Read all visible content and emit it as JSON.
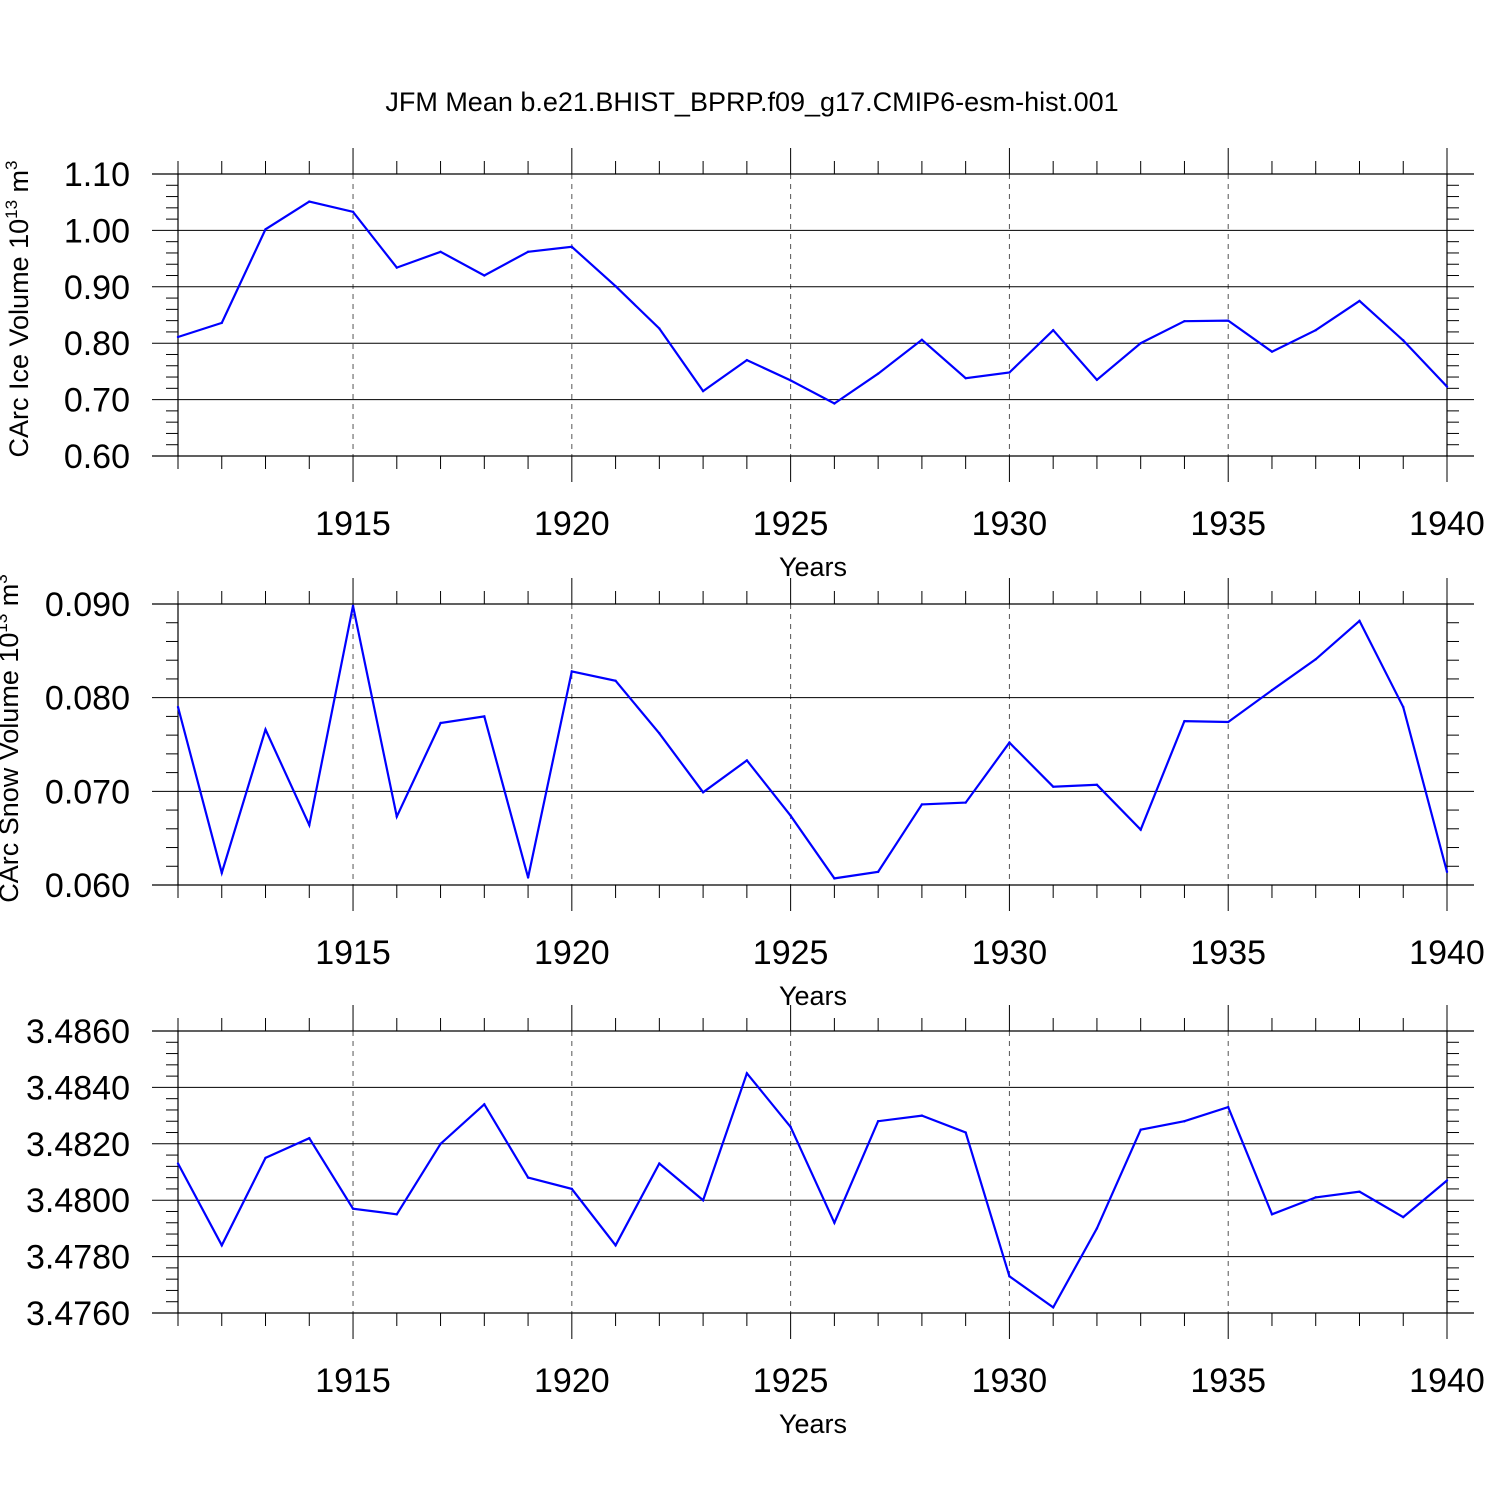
{
  "title": "JFM Mean b.e21.BHIST_BPRP.f09_g17.CMIP6-esm-hist.001",
  "chart_data": [
    {
      "type": "line",
      "title": "JFM Mean b.e21.BHIST_BPRP.f09_g17.CMIP6-esm-hist.001",
      "xlabel": "Years",
      "ylabel": "CArc Ice Volume 10^13 m^3",
      "ylabel_parts": [
        "CArc Ice Volume 10",
        "13",
        " m",
        "3"
      ],
      "xlim": [
        1911,
        1940
      ],
      "ylim": [
        0.6,
        1.1
      ],
      "xticks": [
        1915,
        1920,
        1925,
        1930,
        1935,
        1940
      ],
      "xtick_labels": [
        "1915",
        "1920",
        "1925",
        "1930",
        "1935",
        "1940"
      ],
      "yticks": [
        0.6,
        0.7,
        0.8,
        0.9,
        1.0,
        1.1
      ],
      "ytick_labels": [
        "0.60",
        "0.70",
        "0.80",
        "0.90",
        "1.00",
        "1.10"
      ],
      "grid": "vertical dashed at major x ticks",
      "x": [
        1911,
        1912,
        1913,
        1914,
        1915,
        1916,
        1917,
        1918,
        1919,
        1920,
        1921,
        1922,
        1923,
        1924,
        1925,
        1926,
        1927,
        1928,
        1929,
        1930,
        1931,
        1932,
        1933,
        1934,
        1935,
        1936,
        1937,
        1938,
        1939,
        1940
      ],
      "series": [
        {
          "color": "#0000ff",
          "values": [
            0.811,
            0.836,
            1.002,
            1.051,
            1.033,
            0.934,
            0.962,
            0.92,
            0.962,
            0.971,
            0.901,
            0.826,
            0.715,
            0.77,
            0.734,
            0.693,
            0.746,
            0.806,
            0.738,
            0.748,
            0.823,
            0.735,
            0.8,
            0.839,
            0.84,
            0.785,
            0.823,
            0.875,
            0.805,
            0.723
          ]
        }
      ]
    },
    {
      "type": "line",
      "xlabel": "Years",
      "ylabel": "CArc Snow Volume 10^13 m^3",
      "ylabel_parts": [
        "CArc Snow Volume 10",
        "13",
        " m",
        "3"
      ],
      "xlim": [
        1911,
        1940
      ],
      "ylim": [
        0.06,
        0.09
      ],
      "xticks": [
        1915,
        1920,
        1925,
        1930,
        1935,
        1940
      ],
      "xtick_labels": [
        "1915",
        "1920",
        "1925",
        "1930",
        "1935",
        "1940"
      ],
      "yticks": [
        0.06,
        0.07,
        0.08,
        0.09
      ],
      "ytick_labels": [
        "0.060",
        "0.070",
        "0.080",
        "0.090"
      ],
      "grid": "vertical dashed at major x ticks",
      "x": [
        1911,
        1912,
        1913,
        1914,
        1915,
        1916,
        1917,
        1918,
        1919,
        1920,
        1921,
        1922,
        1923,
        1924,
        1925,
        1926,
        1927,
        1928,
        1929,
        1930,
        1931,
        1932,
        1933,
        1934,
        1935,
        1936,
        1937,
        1938,
        1939,
        1940
      ],
      "series": [
        {
          "color": "#0000ff",
          "values": [
            0.079,
            0.0613,
            0.0766,
            0.0664,
            0.0898,
            0.0673,
            0.0773,
            0.078,
            0.0608,
            0.0828,
            0.0818,
            0.0762,
            0.0699,
            0.0733,
            0.0674,
            0.0607,
            0.0614,
            0.0686,
            0.0688,
            0.0752,
            0.0705,
            0.0707,
            0.0659,
            0.0775,
            0.0774,
            0.0808,
            0.0841,
            0.0882,
            0.079,
            0.0614
          ]
        }
      ]
    },
    {
      "type": "line",
      "xlabel": "Years",
      "ylabel": "",
      "xlim": [
        1911,
        1940
      ],
      "ylim": [
        3.476,
        3.486
      ],
      "xticks": [
        1915,
        1920,
        1925,
        1930,
        1935,
        1940
      ],
      "xtick_labels": [
        "1915",
        "1920",
        "1925",
        "1930",
        "1935",
        "1940"
      ],
      "yticks": [
        3.476,
        3.478,
        3.48,
        3.482,
        3.484,
        3.486
      ],
      "ytick_labels": [
        "3.4760",
        "3.4780",
        "3.4800",
        "3.4820",
        "3.4840",
        "3.4860"
      ],
      "grid": "vertical dashed at major x ticks",
      "x": [
        1911,
        1912,
        1913,
        1914,
        1915,
        1916,
        1917,
        1918,
        1919,
        1920,
        1921,
        1922,
        1923,
        1924,
        1925,
        1926,
        1927,
        1928,
        1929,
        1930,
        1931,
        1932,
        1933,
        1934,
        1935,
        1936,
        1937,
        1938,
        1939,
        1940
      ],
      "series": [
        {
          "color": "#0000ff",
          "values": [
            3.4813,
            3.4784,
            3.4815,
            3.4822,
            3.4797,
            3.4795,
            3.482,
            3.4834,
            3.4808,
            3.4804,
            3.4784,
            3.4813,
            3.48,
            3.4845,
            3.4826,
            3.4792,
            3.4828,
            3.483,
            3.4824,
            3.4773,
            3.4762,
            3.479,
            3.4825,
            3.4828,
            3.4833,
            3.4795,
            3.4801,
            3.4803,
            3.4794,
            3.4807
          ]
        }
      ]
    }
  ]
}
